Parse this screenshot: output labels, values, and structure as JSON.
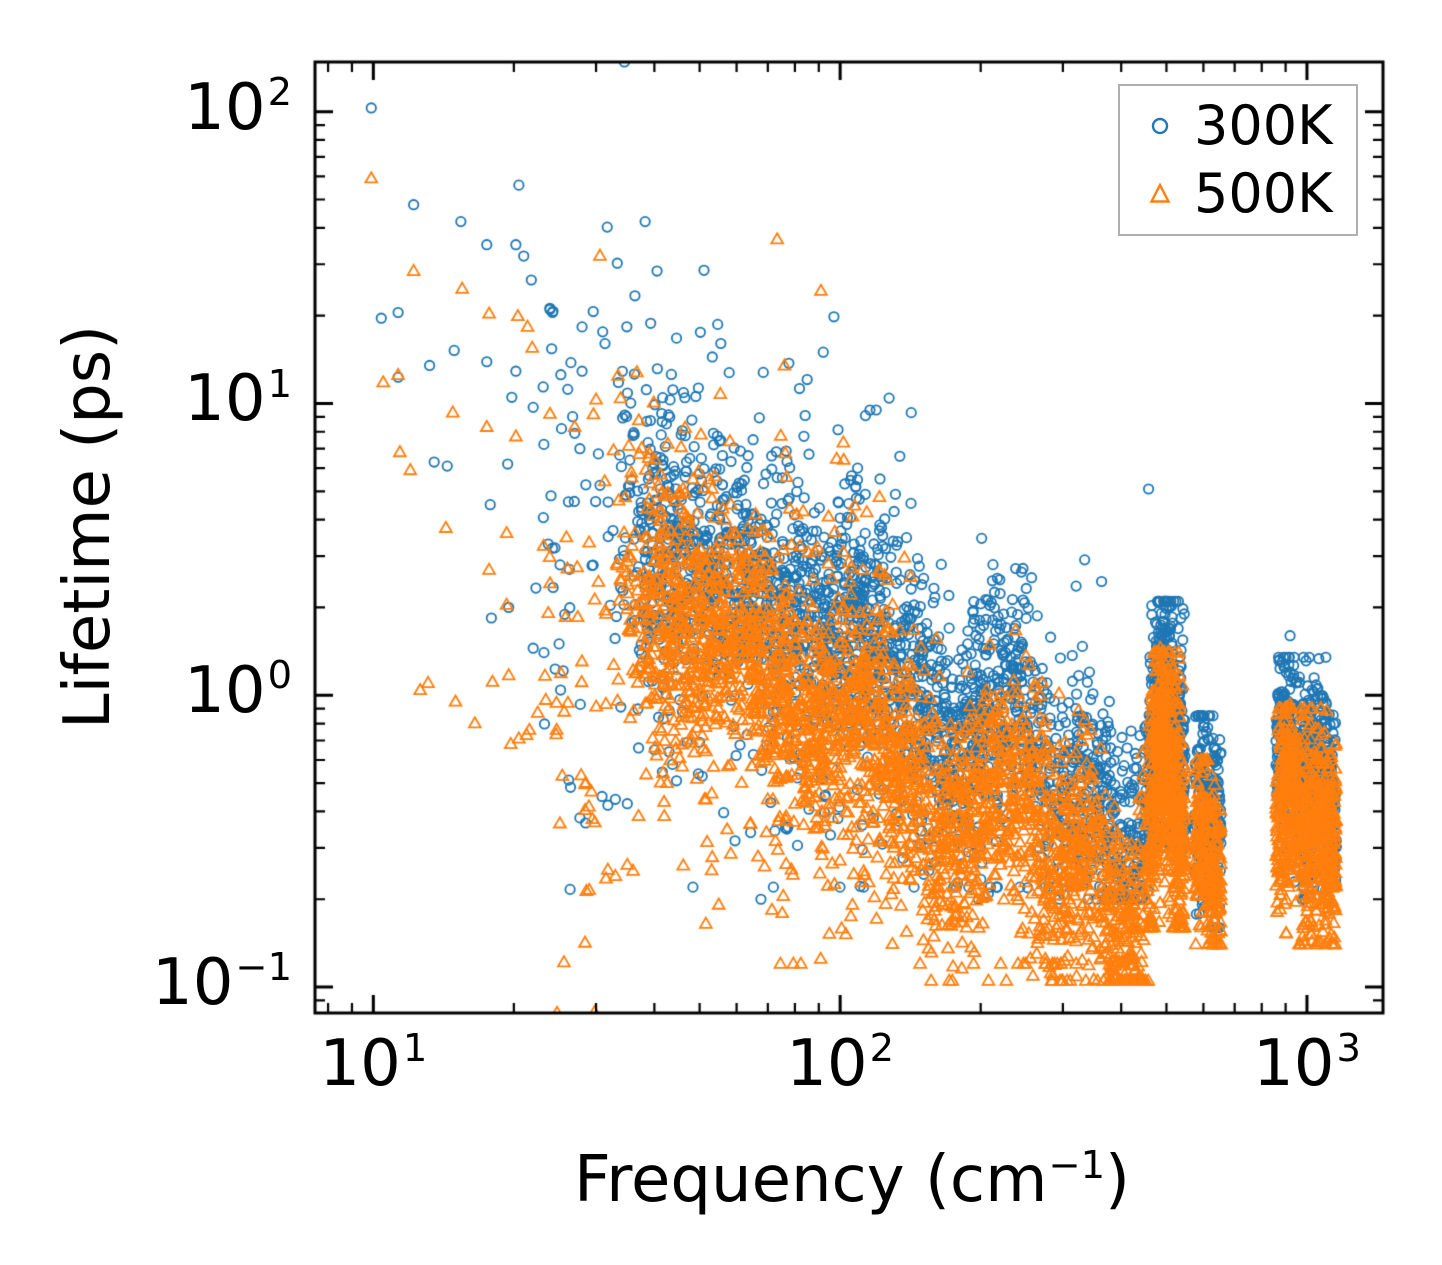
{
  "figure": {
    "background": "#ffffff"
  },
  "chart_data": {
    "type": "scatter",
    "title": "",
    "x_scale": "log",
    "y_scale": "log",
    "xlim": [
      7.5,
      1455
    ],
    "ylim": [
      0.0815,
      148
    ],
    "xlabel": {
      "prefix": "Frequency (cm",
      "sup": "−1",
      "suffix": ")"
    },
    "ylabel": "Lifetime (ps)",
    "x_ticks": [
      {
        "v": 10,
        "b": "10",
        "e": "1"
      },
      {
        "v": 100,
        "b": "10",
        "e": "2"
      },
      {
        "v": 1000,
        "b": "10",
        "e": "3"
      }
    ],
    "y_ticks": [
      {
        "v": 100,
        "b": "10",
        "e": "2"
      },
      {
        "v": 10,
        "b": "10",
        "e": "1"
      },
      {
        "v": 1,
        "b": "10",
        "e": "0"
      },
      {
        "v": 0.1,
        "b": "10",
        "e": "−1"
      }
    ],
    "grid": false,
    "legend_position": "upper right",
    "series": [
      {
        "name": "300K",
        "color": "#1f77b4",
        "marker": "circle",
        "outliers": [
          [
            9.9,
            103
          ],
          [
            10.4,
            19.6
          ],
          [
            11.3,
            20.5
          ],
          [
            11.3,
            12.3
          ],
          [
            12.2,
            48
          ],
          [
            13.2,
            13.5
          ],
          [
            13.5,
            6.3
          ],
          [
            14.4,
            6.1
          ],
          [
            14.9,
            15.2
          ],
          [
            15.4,
            42
          ],
          [
            17.5,
            35
          ],
          [
            17.5,
            13.9
          ],
          [
            17.8,
            4.5
          ],
          [
            19.4,
            6.2
          ],
          [
            19.8,
            10.5
          ],
          [
            20.2,
            35
          ],
          [
            20.2,
            12.9
          ],
          [
            20.5,
            56
          ],
          [
            21,
            32
          ],
          [
            21.8,
            26.5
          ],
          [
            22,
            9.7
          ],
          [
            22.3,
            2.33
          ],
          [
            23.7,
            3.3
          ],
          [
            23.9,
            21
          ],
          [
            24.1,
            15.4
          ],
          [
            24.2,
            20.5
          ],
          [
            24.5,
            3.2
          ],
          [
            25.3,
            8.2
          ],
          [
            26.3,
            2.7
          ],
          [
            26.5,
            13.8
          ],
          [
            27,
            7.9
          ],
          [
            27.7,
            7
          ],
          [
            28,
            18.3
          ],
          [
            28,
            12.9
          ],
          [
            17.9,
            1.84
          ],
          [
            19.5,
            2
          ],
          [
            31,
            17.6
          ],
          [
            33.5,
            11.8
          ],
          [
            27.7,
            0.38
          ],
          [
            30.9,
            0.45
          ],
          [
            33,
            0.44
          ],
          [
            22,
            1.45
          ],
          [
            23.2,
            1.4
          ],
          [
            25,
            1.5
          ],
          [
            37,
            0.66
          ],
          [
            40,
            0.65
          ],
          [
            43,
            0.64
          ],
          [
            47,
            0.69
          ],
          [
            50,
            0.69
          ],
          [
            28.5,
            0.365
          ],
          [
            31.8,
            0.42
          ],
          [
            35,
            0.425
          ],
          [
            99,
            4.6
          ],
          [
            100,
            4.05
          ],
          [
            101,
            3.45
          ],
          [
            920,
            1.6
          ],
          [
            1050,
            1.05
          ],
          [
            1085,
            0.98
          ],
          [
            1100,
            0.93
          ],
          [
            506,
            2.02
          ],
          [
            600,
            0.78
          ]
        ],
        "bands": [
          {
            "x_range": [
              33,
              460
            ],
            "count": 2400,
            "spread": 0.2,
            "min_L": 0.2,
            "ramp_in": true,
            "center": [
              [
                33,
                3.5
              ],
              [
                42,
                3.0
              ],
              [
                50,
                2.8
              ],
              [
                60,
                2.5
              ],
              [
                70,
                2.1
              ],
              [
                80,
                1.8
              ],
              [
                90,
                1.55
              ],
              [
                100,
                1.5
              ],
              [
                110,
                1.7
              ],
              [
                125,
                1.4
              ],
              [
                140,
                1.12
              ],
              [
                160,
                0.85
              ],
              [
                178,
                0.6
              ],
              [
                195,
                0.8
              ],
              [
                215,
                1.0
              ],
              [
                235,
                1.0
              ],
              [
                255,
                0.82
              ],
              [
                275,
                0.58
              ],
              [
                300,
                0.45
              ],
              [
                330,
                0.52
              ],
              [
                360,
                0.45
              ],
              [
                390,
                0.3
              ],
              [
                410,
                0.27
              ],
              [
                430,
                0.32
              ],
              [
                447,
                0.38
              ],
              [
                460,
                0.4
              ]
            ]
          },
          {
            "x_range": [
              33,
              160
            ],
            "count": 130,
            "spread": 0.28,
            "center": [
              [
                33,
                9
              ],
              [
                45,
                7.5
              ],
              [
                60,
                6.2
              ],
              [
                80,
                4.6
              ],
              [
                100,
                3.8
              ],
              [
                125,
                3.4
              ],
              [
                160,
                2.1
              ]
            ]
          },
          {
            "x_range": [
              40,
              280
            ],
            "count": 90,
            "spread": 0.3,
            "min_L": 0.22,
            "center": [
              [
                40,
                1.0
              ],
              [
                60,
                0.8
              ],
              [
                90,
                0.55
              ],
              [
                140,
                0.4
              ],
              [
                200,
                0.33
              ],
              [
                280,
                0.25
              ]
            ]
          },
          {
            "x_range": [
              23,
              34
            ],
            "count": 40,
            "spread": 0.42,
            "center": [
              [
                23,
                2.2
              ],
              [
                34,
                2.8
              ]
            ]
          },
          {
            "x_range": [
              458,
              548
            ],
            "count": 600,
            "spread": 0.22,
            "min_L": 0.3,
            "max_L": 2.1,
            "center": [
              [
                458,
                0.42
              ],
              [
                478,
                0.85
              ],
              [
                495,
                0.95
              ],
              [
                512,
                0.78
              ],
              [
                530,
                0.55
              ],
              [
                548,
                0.45
              ]
            ]
          },
          {
            "x_range": [
              575,
              655
            ],
            "count": 250,
            "spread": 0.18,
            "min_L": 0.16,
            "max_L": 0.85,
            "center": [
              [
                575,
                0.4
              ],
              [
                600,
                0.45
              ],
              [
                625,
                0.38
              ],
              [
                655,
                0.32
              ]
            ]
          },
          {
            "x_range": [
              858,
              1155
            ],
            "count": 640,
            "spread": 0.17,
            "min_L": 0.2,
            "max_L": 1.35,
            "center": [
              [
                858,
                0.6
              ],
              [
                900,
                0.68
              ],
              [
                950,
                0.6
              ],
              [
                1000,
                0.5
              ],
              [
                1050,
                0.57
              ],
              [
                1100,
                0.5
              ],
              [
                1155,
                0.42
              ]
            ]
          }
        ]
      },
      {
        "name": "500K",
        "color": "#ff7f0e",
        "marker": "triangle",
        "outliers": [
          [
            9.9,
            59
          ],
          [
            10.5,
            11.8
          ],
          [
            11.3,
            12.5
          ],
          [
            11.4,
            6.8
          ],
          [
            12,
            5.9
          ],
          [
            12.2,
            28.4
          ],
          [
            12.6,
            1.04
          ],
          [
            13.1,
            1.1
          ],
          [
            14.3,
            3.74
          ],
          [
            14.8,
            9.3
          ],
          [
            15,
            0.95
          ],
          [
            15.5,
            24.7
          ],
          [
            16.5,
            0.8
          ],
          [
            17.5,
            8.3
          ],
          [
            17.7,
            20.3
          ],
          [
            17.7,
            2.69
          ],
          [
            18,
            1.11
          ],
          [
            19.3,
            3.59
          ],
          [
            19.3,
            2.04
          ],
          [
            19.5,
            1.17
          ],
          [
            19.7,
            0.68
          ],
          [
            20.2,
            7.7
          ],
          [
            20.4,
            19.9
          ],
          [
            20.5,
            0.71
          ],
          [
            21.3,
            0.73
          ],
          [
            21.4,
            18.3
          ],
          [
            21.6,
            0.76
          ],
          [
            21.9,
            15.5
          ],
          [
            22.5,
            0.87
          ],
          [
            23.7,
            1.91
          ],
          [
            23.9,
            9.2
          ],
          [
            24.7,
            0.76
          ],
          [
            25.8,
            1.85
          ],
          [
            27,
            8.3
          ],
          [
            27.4,
            1.85
          ],
          [
            29,
            0.215
          ],
          [
            30,
            10.3
          ],
          [
            31.3,
            5.4
          ],
          [
            31.5,
            0.235
          ],
          [
            32.7,
            6.9
          ],
          [
            33,
            0.24
          ],
          [
            36,
            0.25
          ],
          [
            28.6,
            0.213
          ],
          [
            31.8,
            0.252
          ],
          [
            35,
            0.262
          ],
          [
            28.5,
            0.5
          ],
          [
            37,
            0.385
          ],
          [
            42,
            0.385
          ],
          [
            920,
            0.93
          ],
          [
            1075,
            0.73
          ],
          [
            485,
            1.45
          ]
        ],
        "bands": [
          {
            "x_range": [
              33,
              460
            ],
            "count": 2600,
            "spread": 0.2,
            "min_L": 0.105,
            "ramp_in": true,
            "center": [
              [
                33,
                2.1
              ],
              [
                42,
                1.8
              ],
              [
                50,
                1.62
              ],
              [
                60,
                1.45
              ],
              [
                70,
                1.15
              ],
              [
                80,
                0.95
              ],
              [
                90,
                0.8
              ],
              [
                100,
                0.78
              ],
              [
                110,
                0.9
              ],
              [
                125,
                0.7
              ],
              [
                140,
                0.55
              ],
              [
                160,
                0.4
              ],
              [
                178,
                0.3
              ],
              [
                195,
                0.42
              ],
              [
                215,
                0.52
              ],
              [
                235,
                0.52
              ],
              [
                255,
                0.42
              ],
              [
                275,
                0.3
              ],
              [
                300,
                0.26
              ],
              [
                330,
                0.3
              ],
              [
                360,
                0.26
              ],
              [
                390,
                0.17
              ],
              [
                410,
                0.15
              ],
              [
                430,
                0.17
              ],
              [
                447,
                0.2
              ],
              [
                460,
                0.24
              ]
            ]
          },
          {
            "x_range": [
              33,
              130
            ],
            "count": 110,
            "spread": 0.28,
            "center": [
              [
                33,
                5.5
              ],
              [
                45,
                4.5
              ],
              [
                60,
                3.6
              ],
              [
                80,
                2.6
              ],
              [
                100,
                2.2
              ],
              [
                130,
                1.7
              ]
            ]
          },
          {
            "x_range": [
              45,
              330
            ],
            "count": 140,
            "spread": 0.28,
            "min_L": 0.12,
            "center": [
              [
                45,
                0.6
              ],
              [
                60,
                0.5
              ],
              [
                90,
                0.38
              ],
              [
                140,
                0.28
              ],
              [
                200,
                0.22
              ],
              [
                260,
                0.18
              ],
              [
                330,
                0.17
              ]
            ]
          },
          {
            "x_range": [
              23,
              34
            ],
            "count": 40,
            "spread": 0.45,
            "center": [
              [
                23,
                1.3
              ],
              [
                34,
                1.6
              ]
            ]
          },
          {
            "x_range": [
              458,
              548
            ],
            "count": 620,
            "spread": 0.22,
            "min_L": 0.16,
            "max_L": 1.4,
            "center": [
              [
                458,
                0.3
              ],
              [
                478,
                0.6
              ],
              [
                495,
                0.68
              ],
              [
                512,
                0.55
              ],
              [
                530,
                0.4
              ],
              [
                548,
                0.3
              ]
            ]
          },
          {
            "x_range": [
              575,
              655
            ],
            "count": 250,
            "spread": 0.17,
            "min_L": 0.14,
            "max_L": 0.6,
            "center": [
              [
                575,
                0.27
              ],
              [
                600,
                0.3
              ],
              [
                625,
                0.25
              ],
              [
                655,
                0.22
              ]
            ]
          },
          {
            "x_range": [
              858,
              1155
            ],
            "count": 700,
            "spread": 0.17,
            "min_L": 0.14,
            "max_L": 0.9,
            "center": [
              [
                858,
                0.4
              ],
              [
                900,
                0.46
              ],
              [
                950,
                0.4
              ],
              [
                1000,
                0.33
              ],
              [
                1050,
                0.38
              ],
              [
                1100,
                0.32
              ],
              [
                1155,
                0.28
              ]
            ]
          }
        ]
      }
    ],
    "legend": {
      "items": [
        {
          "label": "300K",
          "marker": "circle"
        },
        {
          "label": "500K",
          "marker": "triangle"
        }
      ]
    }
  }
}
